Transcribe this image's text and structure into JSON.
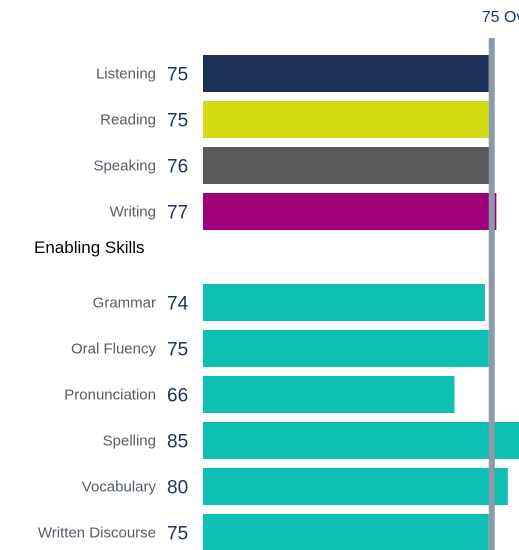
{
  "chart_data": {
    "type": "bar",
    "orientation": "horizontal",
    "overall": {
      "value": 75,
      "label": "Overall",
      "color": "#8a9aab"
    },
    "groups": [
      {
        "heading": "",
        "items": [
          {
            "label": "Listening",
            "value": 75,
            "color": "#1b3157"
          },
          {
            "label": "Reading",
            "value": 75,
            "color": "#d3db12"
          },
          {
            "label": "Speaking",
            "value": 76,
            "color": "#595959"
          },
          {
            "label": "Writing",
            "value": 77,
            "color": "#a0007a"
          }
        ]
      },
      {
        "heading": "Enabling Skills",
        "items": [
          {
            "label": "Grammar",
            "value": 74,
            "color": "#0ebfb3"
          },
          {
            "label": "Oral Fluency",
            "value": 75,
            "color": "#0ebfb3"
          },
          {
            "label": "Pronunciation",
            "value": 66,
            "color": "#0ebfb3"
          },
          {
            "label": "Spelling",
            "value": 85,
            "color": "#0ebfb3"
          },
          {
            "label": "Vocabulary",
            "value": 80,
            "color": "#0ebfb3"
          },
          {
            "label": "Written Discourse",
            "value": 75,
            "color": "#0ebfb3"
          }
        ]
      }
    ]
  }
}
